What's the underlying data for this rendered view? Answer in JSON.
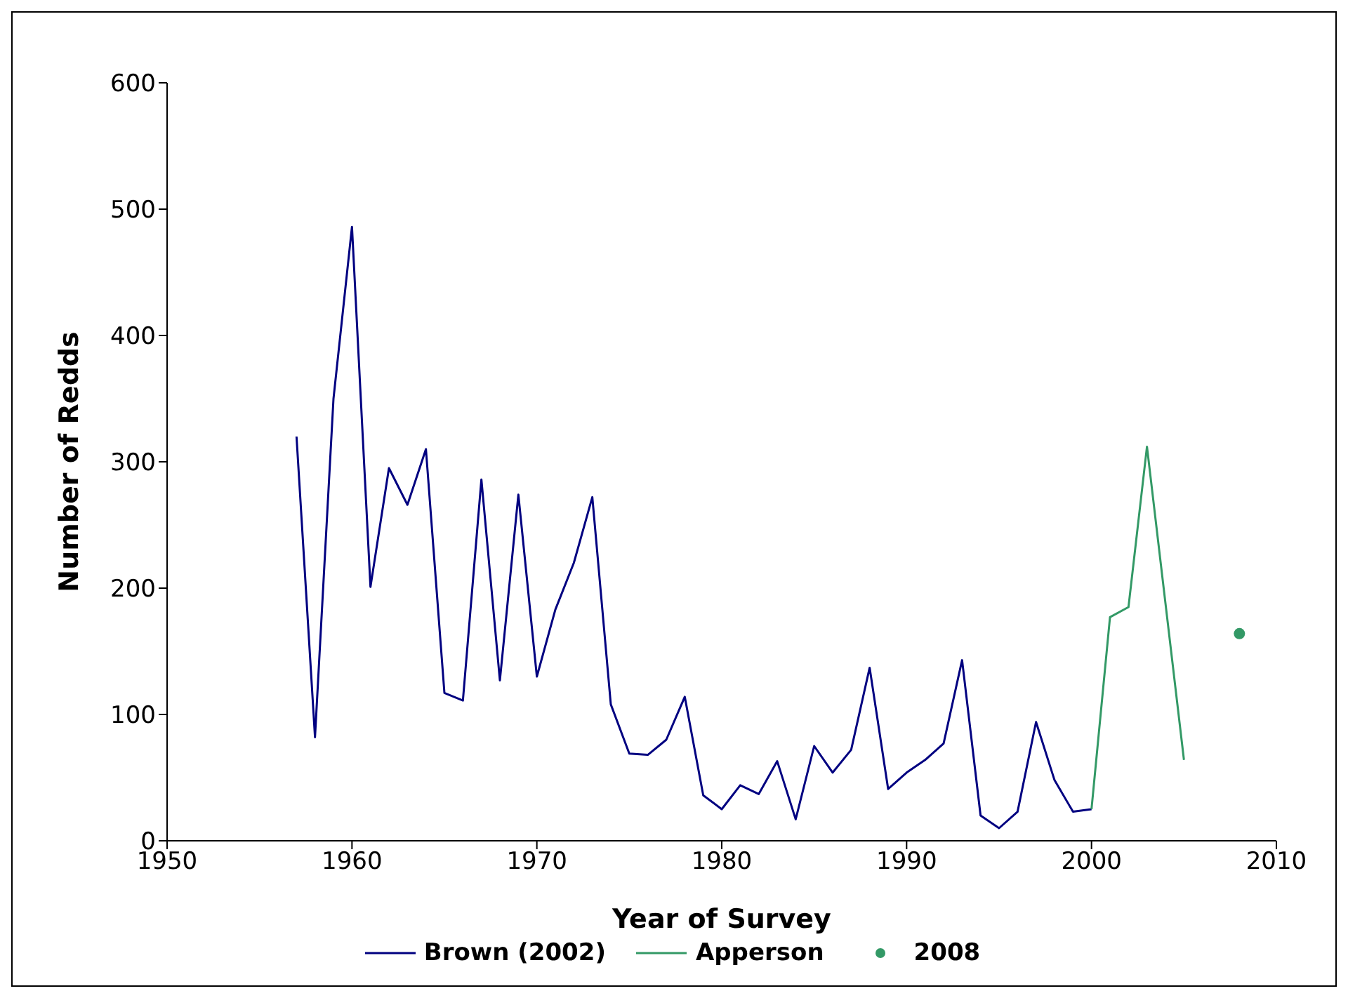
{
  "chart_data": {
    "type": "line",
    "xlabel": "Year of Survey",
    "ylabel": "Number of Redds",
    "xlim": [
      1950,
      2010
    ],
    "xticks": [
      1950,
      1960,
      1970,
      1980,
      1990,
      2000,
      2010
    ],
    "ylim": [
      0,
      600
    ],
    "yticks": [
      0,
      100,
      200,
      300,
      400,
      500,
      600
    ],
    "grid": false,
    "legend": "bottom",
    "marker": "none",
    "series": [
      {
        "name": "Brown (2002)",
        "color": "#000080",
        "x": [
          1957,
          1958,
          1959,
          1960,
          1961,
          1962,
          1963,
          1964,
          1965,
          1966,
          1967,
          1968,
          1969,
          1970,
          1971,
          1972,
          1973,
          1974,
          1975,
          1976,
          1977,
          1978,
          1979,
          1980,
          1981,
          1982,
          1983,
          1984,
          1985,
          1986,
          1987,
          1988,
          1989,
          1990,
          1991,
          1992,
          1993,
          1994,
          1995,
          1996,
          1997,
          1998,
          1999,
          2000
        ],
        "values": [
          320,
          82,
          350,
          486,
          201,
          295,
          266,
          310,
          117,
          111,
          286,
          127,
          274,
          130,
          183,
          220,
          272,
          108,
          69,
          68,
          80,
          114,
          36,
          25,
          44,
          37,
          63,
          17,
          75,
          54,
          72,
          137,
          41,
          54,
          64,
          77,
          143,
          20,
          10,
          23,
          94,
          48,
          23,
          25
        ]
      },
      {
        "name": "Apperson",
        "color": "#339966",
        "x": [
          2000,
          2001,
          2002,
          2003,
          2005
        ],
        "values": [
          25,
          177,
          185,
          312,
          64
        ]
      },
      {
        "name": "2008",
        "type": "scatter",
        "marker": "circle",
        "color": "#339966",
        "x": [
          2008
        ],
        "values": [
          164
        ]
      }
    ]
  }
}
